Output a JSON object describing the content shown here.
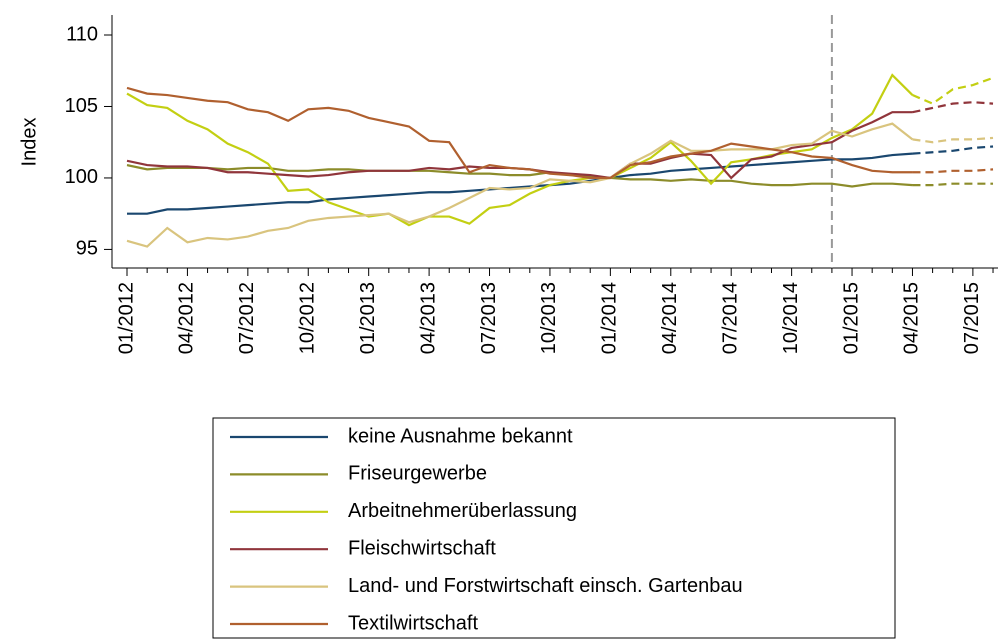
{
  "chart_data": {
    "type": "line",
    "y_label": "Index",
    "categories": [
      "01/2012",
      null,
      null,
      "04/2012",
      null,
      null,
      "07/2012",
      null,
      null,
      "10/2012",
      null,
      null,
      "01/2013",
      null,
      null,
      "04/2013",
      null,
      null,
      "07/2013",
      null,
      null,
      "10/2013",
      null,
      null,
      "01/2014",
      null,
      null,
      "04/2014",
      null,
      null,
      "07/2014",
      null,
      null,
      "10/2014",
      null,
      null,
      "01/2015",
      null,
      null,
      "04/2015",
      null,
      null,
      "07/2015",
      null
    ],
    "dashed_from": "04/2015",
    "reference_line_index": 35,
    "ylim": [
      93.7,
      111.4
    ],
    "yticks": [
      95,
      100,
      105,
      110
    ],
    "legend": "bottom",
    "series": [
      {
        "name": "keine Ausnahme bekannt",
        "color": "#1a476f",
        "values": [
          97.5,
          97.5,
          97.8,
          97.8,
          97.9,
          98.0,
          98.1,
          98.2,
          98.3,
          98.3,
          98.5,
          98.6,
          98.7,
          98.8,
          98.9,
          99.0,
          99.0,
          99.1,
          99.2,
          99.3,
          99.4,
          99.5,
          99.6,
          99.8,
          100.0,
          100.2,
          100.3,
          100.5,
          100.6,
          100.7,
          100.8,
          100.9,
          101.0,
          101.1,
          101.2,
          101.3,
          101.3,
          101.4,
          101.6,
          101.7,
          101.8,
          101.9,
          102.1,
          102.2
        ]
      },
      {
        "name": "Friseurgewerbe",
        "color": "#8c8c2a",
        "values": [
          100.9,
          100.6,
          100.7,
          100.7,
          100.7,
          100.6,
          100.7,
          100.7,
          100.5,
          100.5,
          100.6,
          100.6,
          100.5,
          100.5,
          100.5,
          100.5,
          100.4,
          100.3,
          100.3,
          100.2,
          100.2,
          100.4,
          100.2,
          100.1,
          100.0,
          99.9,
          99.9,
          99.8,
          99.9,
          99.8,
          99.8,
          99.6,
          99.5,
          99.5,
          99.6,
          99.6,
          99.4,
          99.6,
          99.6,
          99.5,
          99.5,
          99.6,
          99.6,
          99.6
        ]
      },
      {
        "name": "Arbeitnehmerüberlassung",
        "color": "#c3cf12",
        "values": [
          105.9,
          105.1,
          104.9,
          104.0,
          103.4,
          102.4,
          101.8,
          101.0,
          99.1,
          99.2,
          98.3,
          97.8,
          97.3,
          97.5,
          96.7,
          97.3,
          97.3,
          96.8,
          97.9,
          98.1,
          98.9,
          99.5,
          99.8,
          100.0,
          100.0,
          100.7,
          101.4,
          102.5,
          101.2,
          99.6,
          101.1,
          101.3,
          101.6,
          101.8,
          102.0,
          102.8,
          103.4,
          104.5,
          107.2,
          105.8,
          105.2,
          106.2,
          106.5,
          107.0
        ]
      },
      {
        "name": "Fleischwirtschaft",
        "color": "#90353b",
        "values": [
          101.2,
          100.9,
          100.8,
          100.8,
          100.7,
          100.4,
          100.4,
          100.3,
          100.2,
          100.1,
          100.2,
          100.4,
          100.5,
          100.5,
          100.5,
          100.7,
          100.6,
          100.8,
          100.7,
          100.7,
          100.6,
          100.4,
          100.3,
          100.2,
          100.0,
          101.0,
          101.0,
          101.4,
          101.7,
          101.6,
          100.0,
          101.3,
          101.5,
          102.1,
          102.3,
          102.5,
          103.3,
          103.9,
          104.6,
          104.6,
          104.9,
          105.2,
          105.3,
          105.2
        ]
      },
      {
        "name": "Land- und Forstwirtschaft einsch. Gartenbau",
        "color": "#d9c47e",
        "values": [
          95.6,
          95.2,
          96.5,
          95.5,
          95.8,
          95.7,
          95.9,
          96.3,
          96.5,
          97.0,
          97.2,
          97.3,
          97.4,
          97.5,
          96.9,
          97.3,
          97.9,
          98.6,
          99.3,
          99.2,
          99.3,
          99.9,
          99.8,
          99.7,
          100.0,
          101.0,
          101.7,
          102.6,
          101.9,
          101.9,
          102.0,
          102.0,
          102.0,
          102.3,
          102.4,
          103.3,
          102.9,
          103.4,
          103.8,
          102.7,
          102.5,
          102.7,
          102.7,
          102.8
        ]
      },
      {
        "name": "Textilwirtschaft",
        "color": "#b0602f",
        "values": [
          106.3,
          105.9,
          105.8,
          105.6,
          105.4,
          105.3,
          104.8,
          104.6,
          104.0,
          104.8,
          104.9,
          104.7,
          104.2,
          103.9,
          103.6,
          102.6,
          102.5,
          100.4,
          100.9,
          100.7,
          100.6,
          100.3,
          100.2,
          100.0,
          100.0,
          100.9,
          101.1,
          101.5,
          101.7,
          101.9,
          102.4,
          102.2,
          102.0,
          101.8,
          101.5,
          101.4,
          100.9,
          100.5,
          100.4,
          100.4,
          100.4,
          100.5,
          100.5,
          100.6
        ]
      }
    ]
  }
}
